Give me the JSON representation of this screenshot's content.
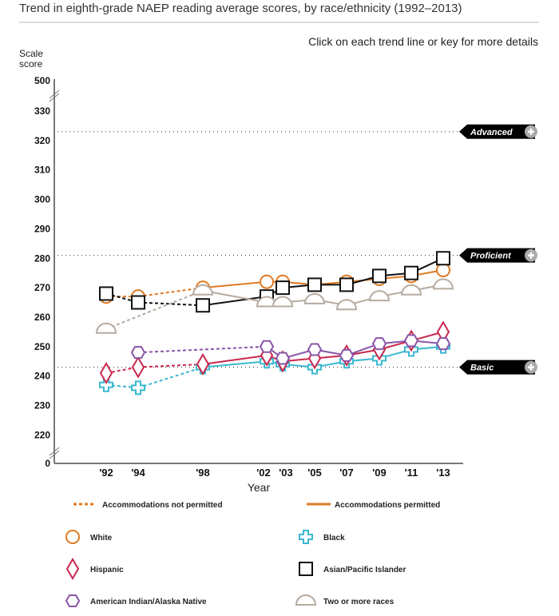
{
  "header": {
    "title": "Trend in eighth-grade NAEP reading average scores, by race/ethnicity (1992–2013)",
    "hint": "Click on each trend line or key for more details"
  },
  "chart_data": {
    "type": "line",
    "title": "Trend in eighth-grade NAEP reading average scores, by race/ethnicity (1992–2013)",
    "xlabel": "Year",
    "ylabel": "Scale score",
    "x": [
      "'92",
      "'94",
      "'98",
      "'02",
      "'03",
      "'05",
      "'07",
      "'09",
      "'11",
      "'13"
    ],
    "x_years": [
      1992,
      1994,
      1998,
      2002,
      2003,
      2005,
      2007,
      2009,
      2011,
      2013
    ],
    "yticks": [
      0,
      220,
      230,
      240,
      250,
      260,
      270,
      280,
      290,
      300,
      310,
      320,
      330,
      500
    ],
    "ylim": [
      215,
      333
    ],
    "axis_breaks": [
      "between 330 and 500",
      "between 0 and 220"
    ],
    "grid": false,
    "accommodations_not_permitted_years": [
      1992,
      1994
    ],
    "achievement_levels": [
      {
        "name": "Advanced",
        "value": 323
      },
      {
        "name": "Proficient",
        "value": 281
      },
      {
        "name": "Basic",
        "value": 243
      }
    ],
    "series": [
      {
        "name": "White",
        "color": "#e07b24",
        "marker": "circle",
        "values": [
          267,
          267,
          270,
          272,
          272,
          271,
          272,
          273,
          274,
          276
        ]
      },
      {
        "name": "Black",
        "color": "#3bb8d0",
        "marker": "cross",
        "values": [
          237,
          236,
          243,
          245,
          244,
          243,
          245,
          246,
          249,
          250
        ]
      },
      {
        "name": "Hispanic",
        "color": "#c8284e",
        "marker": "diamond",
        "values": [
          241,
          243,
          244,
          247,
          245,
          246,
          247,
          249,
          252,
          255
        ]
      },
      {
        "name": "Asian/Pacific Islander",
        "color": "#111111",
        "marker": "square",
        "values": [
          268,
          265,
          264,
          267,
          270,
          271,
          271,
          274,
          275,
          280
        ]
      },
      {
        "name": "American Indian/Alaska Native",
        "color": "#8a55a8",
        "marker": "hexagon",
        "values": [
          null,
          248,
          null,
          250,
          246,
          249,
          247,
          251,
          252,
          251
        ]
      },
      {
        "name": "Two or more races",
        "color": "#b5aba0",
        "marker": "semicircle",
        "values": [
          256,
          null,
          269,
          265,
          265,
          266,
          264,
          267,
          269,
          271
        ]
      }
    ],
    "legend": {
      "line_styles": [
        {
          "label": "Accommodations not permitted",
          "style": "dotted"
        },
        {
          "label": "Accommodations permitted",
          "style": "solid"
        }
      ],
      "placement": "bottom"
    }
  }
}
